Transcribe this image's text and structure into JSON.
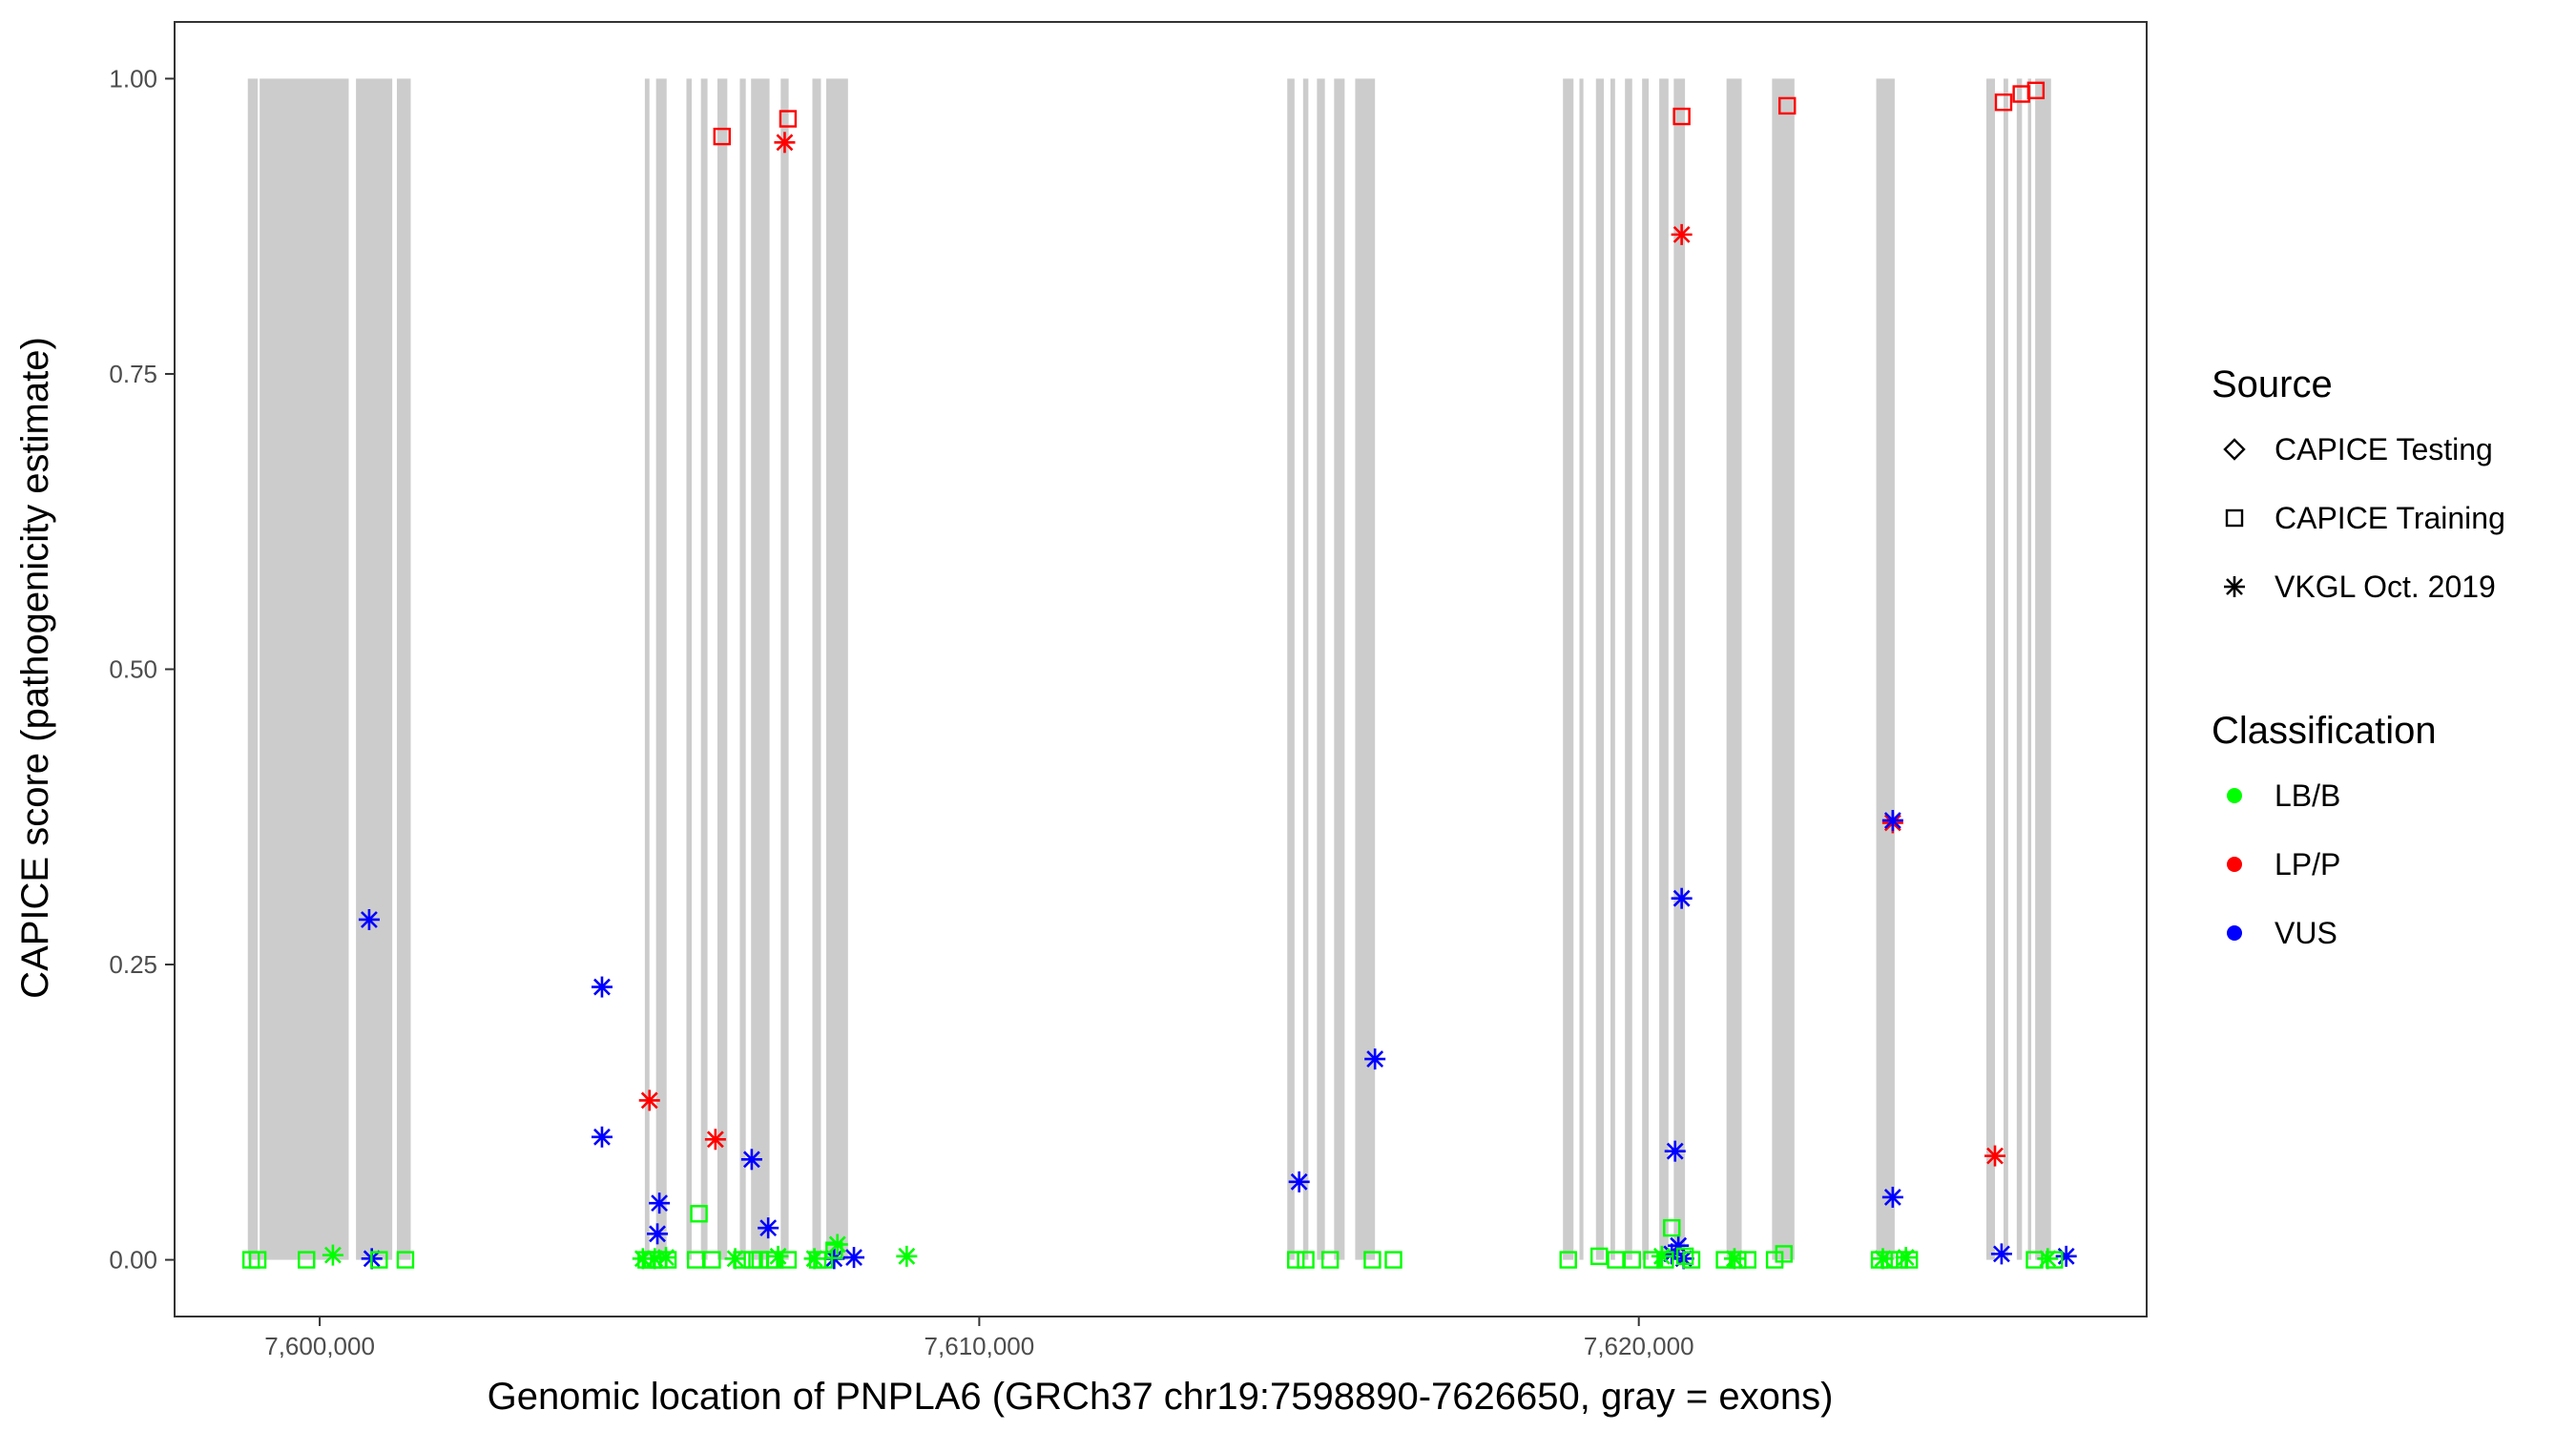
{
  "chart_data": {
    "type": "scatter",
    "xlabel": "Genomic location of PNPLA6 (GRCh37 chr19:7598890-7626650, gray = exons)",
    "ylabel": "CAPICE score (pathogenicity estimate)",
    "xlim": [
      7597800,
      7627700
    ],
    "ylim": [
      -0.048,
      1.048
    ],
    "x_ticks": [
      7600000,
      7610000,
      7620000
    ],
    "x_tick_labels": [
      "7,600,000",
      "7,610,000",
      "7,620,000"
    ],
    "y_ticks": [
      0,
      0.25,
      0.5,
      0.75,
      1.0
    ],
    "y_tick_labels": [
      "0.00",
      "0.25",
      "0.50",
      "0.75",
      "1.00"
    ],
    "grid": false,
    "exon_color": "#cccccc",
    "exons": [
      [
        7598910,
        7599060
      ],
      [
        7599090,
        7600440
      ],
      [
        7600550,
        7601100
      ],
      [
        7601170,
        7601380
      ],
      [
        7604930,
        7605000
      ],
      [
        7605100,
        7605260
      ],
      [
        7605560,
        7605640
      ],
      [
        7605780,
        7605880
      ],
      [
        7606030,
        7606180
      ],
      [
        7606370,
        7606460
      ],
      [
        7606540,
        7606820
      ],
      [
        7606990,
        7607110
      ],
      [
        7607470,
        7607600
      ],
      [
        7607680,
        7608010
      ],
      [
        7614670,
        7614780
      ],
      [
        7614910,
        7614990
      ],
      [
        7615120,
        7615240
      ],
      [
        7615380,
        7615540
      ],
      [
        7615700,
        7616000
      ],
      [
        7618850,
        7619010
      ],
      [
        7619100,
        7619160
      ],
      [
        7619350,
        7619470
      ],
      [
        7619570,
        7619640
      ],
      [
        7619790,
        7619900
      ],
      [
        7620050,
        7620150
      ],
      [
        7620310,
        7620450
      ],
      [
        7620530,
        7620700
      ],
      [
        7621330,
        7621560
      ],
      [
        7622020,
        7622360
      ],
      [
        7623600,
        7623880
      ],
      [
        7625270,
        7625400
      ],
      [
        7625530,
        7625600
      ],
      [
        7625730,
        7625810
      ],
      [
        7625900,
        7625950
      ],
      [
        7626010,
        7626250
      ]
    ],
    "legend": {
      "placement": "right",
      "source_title": "Source",
      "source_entries": [
        {
          "label": "CAPICE Testing",
          "shape": "diamond"
        },
        {
          "label": "CAPICE Training",
          "shape": "square"
        },
        {
          "label": "VKGL Oct. 2019",
          "shape": "asterisk"
        }
      ],
      "class_title": "Classification",
      "class_entries": [
        {
          "label": "LB/B",
          "color": "#00ff00"
        },
        {
          "label": "LP/P",
          "color": "#ff0000"
        },
        {
          "label": "VUS",
          "color": "#0000ff"
        }
      ]
    },
    "series": [
      {
        "source": "CAPICE Training",
        "classification": "LP/P",
        "shape": "square",
        "color": "#ff0000",
        "points": [
          [
            7606100,
            0.951
          ],
          [
            7607100,
            0.966
          ],
          [
            7620650,
            0.968
          ],
          [
            7622250,
            0.977
          ],
          [
            7625530,
            0.98
          ],
          [
            7625800,
            0.987
          ],
          [
            7626020,
            0.99
          ]
        ]
      },
      {
        "source": "VKGL Oct. 2019",
        "classification": "LP/P",
        "shape": "asterisk",
        "color": "#ff0000",
        "points": [
          [
            7607050,
            0.946
          ],
          [
            7620650,
            0.868
          ],
          [
            7605000,
            0.135
          ],
          [
            7606000,
            0.102
          ],
          [
            7623850,
            0.37
          ],
          [
            7625400,
            0.088
          ]
        ]
      },
      {
        "source": "VKGL Oct. 2019",
        "classification": "VUS",
        "shape": "asterisk",
        "color": "#0000ff",
        "points": [
          [
            7600750,
            0.288
          ],
          [
            7604280,
            0.231
          ],
          [
            7604280,
            0.104
          ],
          [
            7605150,
            0.048
          ],
          [
            7605120,
            0.022
          ],
          [
            7606550,
            0.085
          ],
          [
            7606800,
            0.027
          ],
          [
            7614850,
            0.066
          ],
          [
            7616000,
            0.17
          ],
          [
            7620550,
            0.092
          ],
          [
            7620650,
            0.306
          ],
          [
            7623850,
            0.372
          ],
          [
            7623850,
            0.053
          ],
          [
            7600790,
            0.001
          ],
          [
            7607800,
            0.001
          ],
          [
            7608100,
            0.002
          ],
          [
            7620500,
            0.005
          ],
          [
            7620600,
            0.012
          ],
          [
            7620680,
            0.001
          ],
          [
            7625500,
            0.005
          ],
          [
            7626480,
            0.003
          ]
        ]
      },
      {
        "source": "VKGL Oct. 2019",
        "classification": "LB/B",
        "shape": "asterisk",
        "color": "#00ff00",
        "points": [
          [
            7600200,
            0.004
          ],
          [
            7604900,
            0.001
          ],
          [
            7605080,
            0.001
          ],
          [
            7605250,
            0.002
          ],
          [
            7606300,
            0.001
          ],
          [
            7606950,
            0.003
          ],
          [
            7607500,
            0.001
          ],
          [
            7607850,
            0.013
          ],
          [
            7608900,
            0.003
          ],
          [
            7620350,
            0.003
          ],
          [
            7621450,
            0.001
          ],
          [
            7623700,
            0.001
          ],
          [
            7624050,
            0.002
          ],
          [
            7626200,
            0.001
          ]
        ]
      },
      {
        "source": "CAPICE Training",
        "classification": "LB/B",
        "shape": "square",
        "color": "#00ff00",
        "points": [
          [
            7598960,
            0.0
          ],
          [
            7599060,
            0.0
          ],
          [
            7599800,
            0.0
          ],
          [
            7600900,
            0.0
          ],
          [
            7601300,
            0.0
          ],
          [
            7604950,
            0.0
          ],
          [
            7605050,
            0.0
          ],
          [
            7605140,
            0.0
          ],
          [
            7605280,
            0.0
          ],
          [
            7605700,
            0.0
          ],
          [
            7605750,
            0.039
          ],
          [
            7605950,
            0.0
          ],
          [
            7606400,
            0.0
          ],
          [
            7606560,
            0.0
          ],
          [
            7606680,
            0.0
          ],
          [
            7606820,
            0.0
          ],
          [
            7606900,
            0.0
          ],
          [
            7607100,
            0.0
          ],
          [
            7607550,
            0.0
          ],
          [
            7607650,
            0.0
          ],
          [
            7607800,
            0.008
          ],
          [
            7614800,
            0.0
          ],
          [
            7614950,
            0.0
          ],
          [
            7615320,
            0.0
          ],
          [
            7615960,
            0.0
          ],
          [
            7616280,
            0.0
          ],
          [
            7618930,
            0.0
          ],
          [
            7619400,
            0.003
          ],
          [
            7619650,
            0.0
          ],
          [
            7619900,
            0.0
          ],
          [
            7620200,
            0.0
          ],
          [
            7620400,
            0.0
          ],
          [
            7620500,
            0.027
          ],
          [
            7620700,
            0.003
          ],
          [
            7620800,
            0.0
          ],
          [
            7621300,
            0.0
          ],
          [
            7621500,
            0.0
          ],
          [
            7621650,
            0.0
          ],
          [
            7622060,
            0.0
          ],
          [
            7622200,
            0.005
          ],
          [
            7623650,
            0.0
          ],
          [
            7623800,
            0.0
          ],
          [
            7623950,
            0.0
          ],
          [
            7624100,
            0.0
          ],
          [
            7626000,
            0.0
          ],
          [
            7626300,
            0.0
          ]
        ]
      }
    ]
  }
}
